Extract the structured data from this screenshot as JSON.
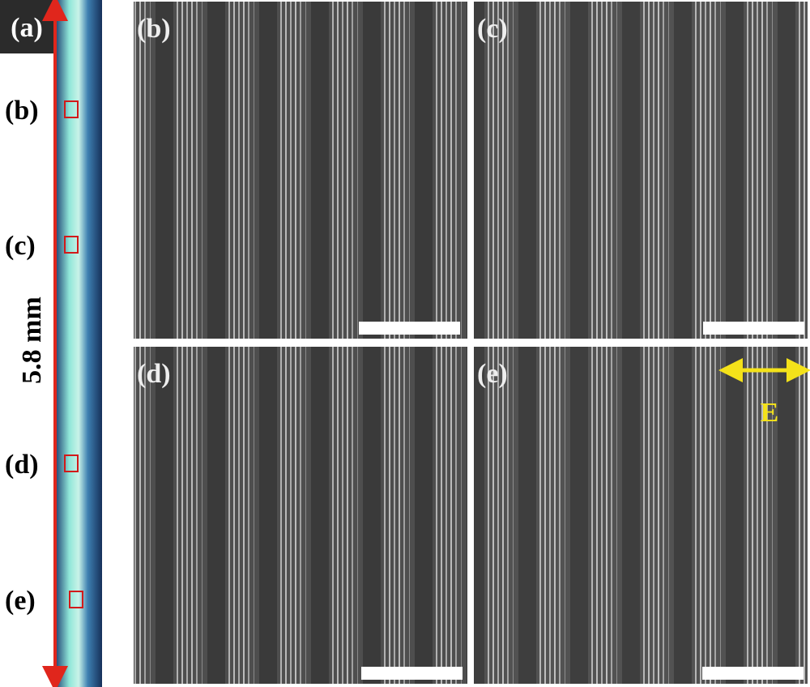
{
  "panel_a": {
    "label": "(a)",
    "length": "5.8 mm",
    "markers": [
      "(b)",
      "(c)",
      "(d)",
      "(e)"
    ]
  },
  "panels": [
    {
      "label": "(b)"
    },
    {
      "label": "(c)"
    },
    {
      "label": "(d)"
    },
    {
      "label": "(e)"
    }
  ],
  "field_label": "E"
}
